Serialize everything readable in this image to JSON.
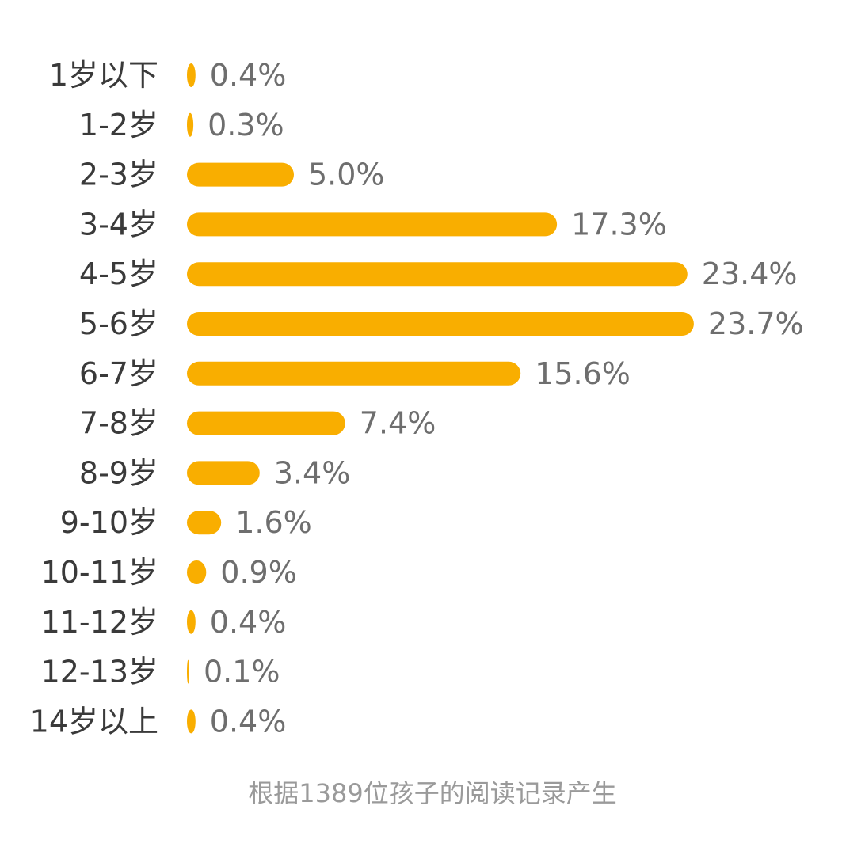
{
  "chart_data": {
    "type": "bar",
    "orientation": "horizontal",
    "categories": [
      "1岁以下",
      "1-2岁",
      "2-3岁",
      "3-4岁",
      "4-5岁",
      "5-6岁",
      "6-7岁",
      "7-8岁",
      "8-9岁",
      "9-10岁",
      "10-11岁",
      "11-12岁",
      "12-13岁",
      "14岁以上"
    ],
    "values": [
      0.4,
      0.3,
      5.0,
      17.3,
      23.4,
      23.7,
      15.6,
      7.4,
      3.4,
      1.6,
      0.9,
      0.4,
      0.1,
      0.4
    ],
    "value_labels": [
      "0.4%",
      "0.3%",
      "5.0%",
      "17.3%",
      "23.4%",
      "23.7%",
      "15.6%",
      "7.4%",
      "3.4%",
      "1.6%",
      "0.9%",
      "0.4%",
      "0.1%",
      "0.4%"
    ],
    "unit": "%",
    "title": "",
    "xlabel": "",
    "ylabel": "",
    "grid": false,
    "legend": "none",
    "colors": {
      "bar": "#F9AE00",
      "category_text": "#3a3a3a",
      "value_text": "#6e6e6e"
    }
  },
  "footnote": "根据1389位孩子的阅读记录产生"
}
